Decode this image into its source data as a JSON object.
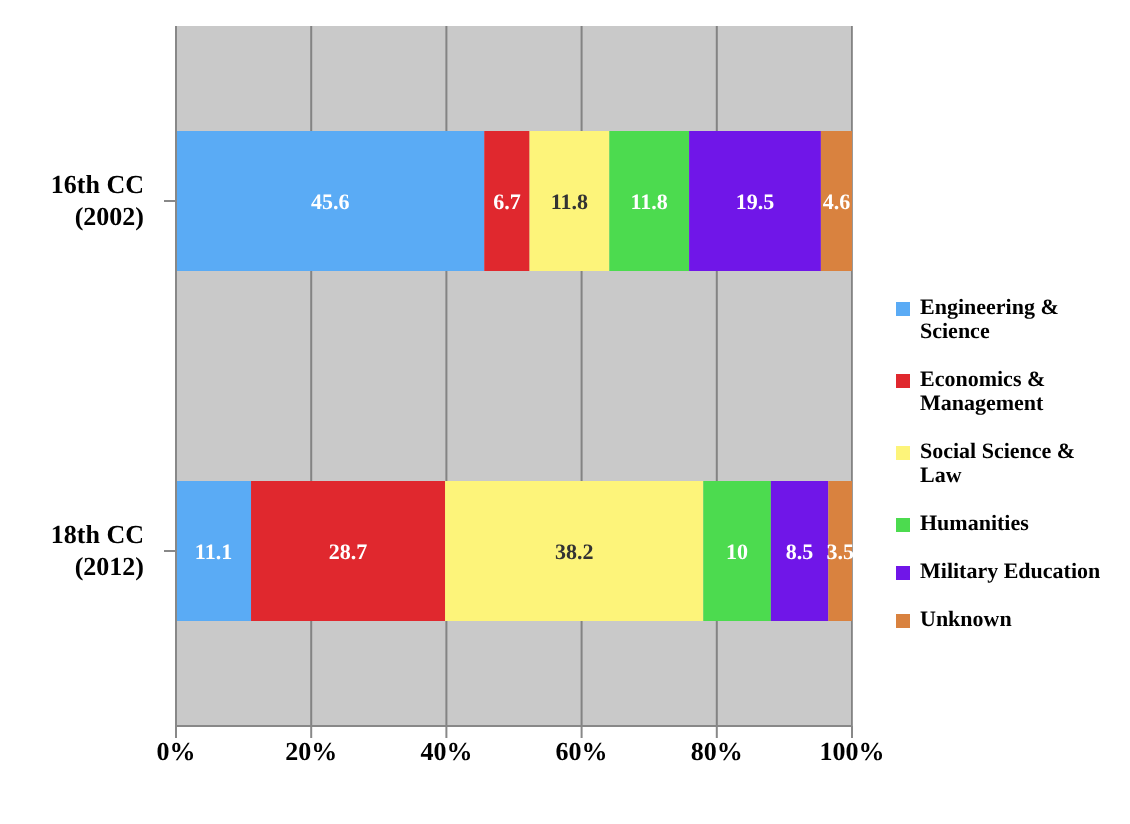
{
  "chart_data": {
    "type": "bar",
    "orientation": "horizontal",
    "stacked": true,
    "categories": [
      "16th CC (2002)",
      "18th CC (2012)"
    ],
    "series": [
      {
        "name": "Engineering & Science",
        "color": "#5aabf5",
        "values": [
          45.6,
          11.1
        ]
      },
      {
        "name": "Economics & Management",
        "color": "#e0282e",
        "values": [
          6.7,
          28.7
        ]
      },
      {
        "name": "Social Science & Law",
        "color": "#fdf47a",
        "values": [
          11.8,
          38.2
        ]
      },
      {
        "name": "Humanities",
        "color": "#4cdb4f",
        "values": [
          11.8,
          10
        ]
      },
      {
        "name": "Military Education",
        "color": "#7016e8",
        "values": [
          19.5,
          8.5
        ]
      },
      {
        "name": "Unknown",
        "color": "#d9823f",
        "values": [
          4.6,
          3.5
        ]
      }
    ],
    "xlim": [
      0,
      100
    ],
    "xticks": [
      {
        "value": 0,
        "label": "0%"
      },
      {
        "value": 20,
        "label": "20%"
      },
      {
        "value": 40,
        "label": "40%"
      },
      {
        "value": 60,
        "label": "60%"
      },
      {
        "value": 80,
        "label": "80%"
      },
      {
        "value": 100,
        "label": "100%"
      }
    ],
    "grid": "x",
    "legend": "right",
    "data_labels": true
  }
}
